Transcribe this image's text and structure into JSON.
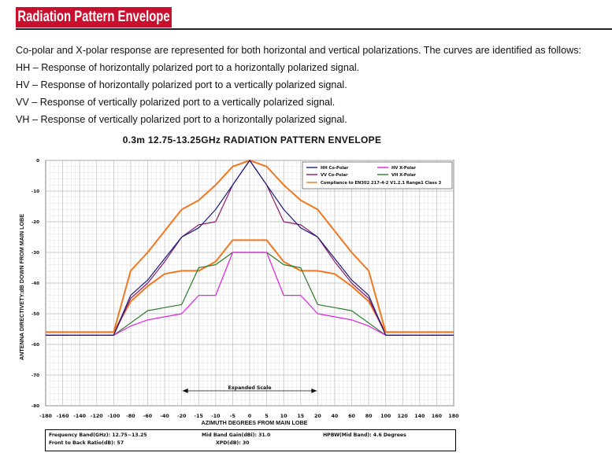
{
  "header": {
    "title": "Radiation Pattern Envelope"
  },
  "intro": {
    "text": "Co-polar and X-polar response are represented for both horizontal and vertical polarizations. The curves are identified as follows:",
    "defs": [
      "HH – Response of horizontally polarized port to a horizontally polarized signal.",
      "HV – Response of horizontally polarized port to a vertically polarized signal.",
      "VV – Response of vertically polarized port to a vertically polarized signal.",
      "VH – Response of vertically polarized port to a horizontally polarized signal."
    ]
  },
  "chart_data": {
    "type": "line",
    "title": "0.3m 12.75-13.25GHz RADIATION PATTERN ENVELOPE",
    "xlabel": "AZIMUTH DEGREES FROM MAIN LOBE",
    "ylabel": "ANTENNA DIRECTIVETY:dB DOWN FROM MAIN LOBE",
    "xticks": [
      "-180",
      "-160",
      "-140",
      "-120",
      "-100",
      "-80",
      "-60",
      "-40",
      "-20",
      "-15",
      "-10",
      "-5",
      "0",
      "5",
      "10",
      "15",
      "20",
      "40",
      "60",
      "80",
      "100",
      "120",
      "140",
      "160",
      "180"
    ],
    "yticks": [
      "0",
      "-10",
      "-20",
      "-30",
      "-40",
      "-50",
      "-60",
      "-70",
      "-80"
    ],
    "ylim": [
      -80,
      0
    ],
    "grid": true,
    "legend_position": "top-right",
    "annotation": "Expanded Scale",
    "series": [
      {
        "name": "HH Co-Polar",
        "color": "#1a1a7a",
        "x": [
          -180,
          -100,
          -80,
          -60,
          -40,
          -20,
          -15,
          -10,
          -5,
          0,
          5,
          10,
          15,
          20,
          40,
          60,
          80,
          100,
          180
        ],
        "y": [
          -57,
          -57,
          -44,
          -39,
          -32,
          -25,
          -22,
          -16,
          -8,
          0,
          -8,
          -16,
          -22,
          -25,
          -32,
          -39,
          -44,
          -57,
          -57
        ]
      },
      {
        "name": "VV Co-Polar",
        "color": "#8b1a6b",
        "x": [
          -180,
          -100,
          -80,
          -60,
          -40,
          -20,
          -15,
          -10,
          -5,
          0,
          5,
          10,
          15,
          20,
          40,
          60,
          80,
          100,
          180
        ],
        "y": [
          -57,
          -57,
          -45,
          -40,
          -33,
          -25,
          -21,
          -20,
          -8,
          0,
          -8,
          -20,
          -21,
          -25,
          -33,
          -40,
          -45,
          -57,
          -57
        ]
      },
      {
        "name": "HV X-Polar",
        "color": "#e020e0",
        "x": [
          -180,
          -100,
          -80,
          -60,
          -40,
          -20,
          -15,
          -10,
          -5,
          0,
          5,
          10,
          15,
          20,
          40,
          60,
          80,
          100,
          180
        ],
        "y": [
          -57,
          -57,
          -54,
          -52,
          -51,
          -50,
          -44,
          -44,
          -30,
          -30,
          -30,
          -44,
          -44,
          -50,
          -51,
          -52,
          -54,
          -57,
          -57
        ]
      },
      {
        "name": "VH X-Polar",
        "color": "#2a7a2a",
        "x": [
          -180,
          -100,
          -80,
          -60,
          -40,
          -20,
          -15,
          -10,
          -5,
          0,
          5,
          10,
          15,
          20,
          40,
          60,
          80,
          100,
          180
        ],
        "y": [
          -57,
          -57,
          -53,
          -49,
          -48,
          -47,
          -35,
          -34,
          -30,
          -30,
          -30,
          -34,
          -35,
          -47,
          -48,
          -49,
          -53,
          -57,
          -57
        ]
      },
      {
        "name": "Compliance to EN302 217-4-2 V1.2.1 Range1 Class 3",
        "color": "#f07820",
        "x": [
          -180,
          -100,
          -80,
          -60,
          -40,
          -20,
          -15,
          -10,
          -5,
          0,
          5,
          10,
          15,
          20,
          40,
          60,
          80,
          100,
          180
        ],
        "y": [
          -56,
          -56,
          -36,
          -30,
          -23,
          -16,
          -13,
          -8,
          -2,
          0,
          -2,
          -8,
          -13,
          -16,
          -23,
          -30,
          -36,
          -56,
          -56
        ]
      },
      {
        "name": "",
        "color": "#f07820",
        "x": [
          -180,
          -100,
          -80,
          -60,
          -40,
          -20,
          -15,
          -10,
          -5,
          0,
          5,
          10,
          15,
          20,
          40,
          60,
          80,
          100,
          180
        ],
        "y": [
          -56,
          -56,
          -46,
          -41,
          -37,
          -36,
          -36,
          -33,
          -26,
          -26,
          -26,
          -33,
          -36,
          -36,
          -37,
          -41,
          -46,
          -56,
          -56
        ]
      }
    ]
  },
  "specs": {
    "freq": "Frequency Band(GHz): 12.75~13.25",
    "ftb": "Front to Back Ratio(dB): 57",
    "gain": "Mid Band Gain(dBi): 31.0",
    "xpd": "XPD(dB): 30",
    "hpbw": "HPBW(Mid Band): 4.6 Degrees"
  }
}
